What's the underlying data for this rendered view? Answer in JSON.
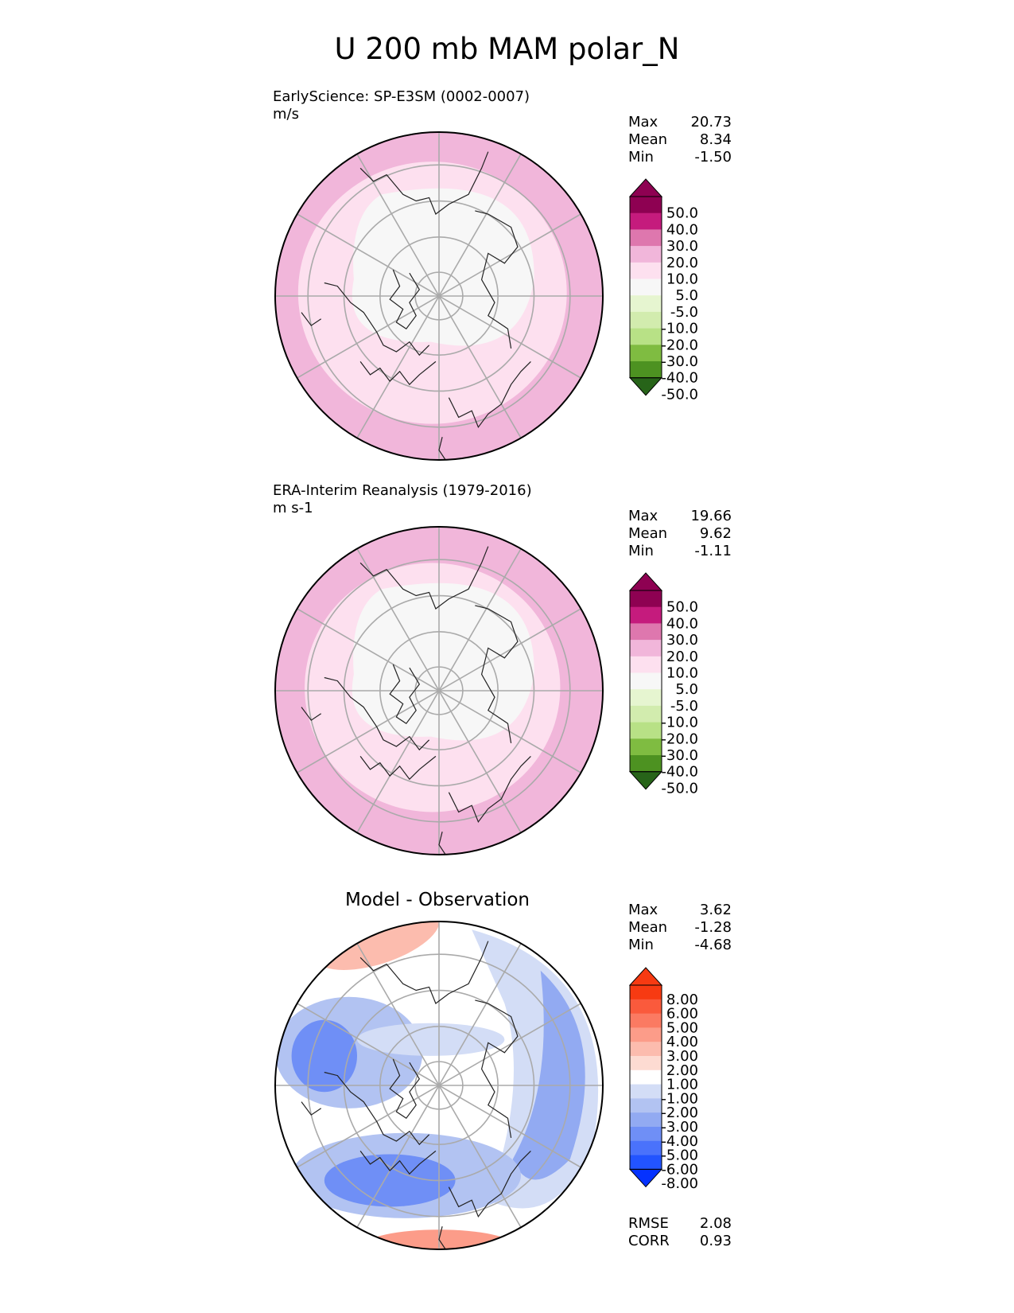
{
  "title": "U 200 mb MAM polar_N",
  "panels": [
    {
      "title_line1": "EarlyScience: SP-E3SM (0002-0007)",
      "title_line2": "m/s",
      "stats": [
        {
          "label": "Max",
          "value": "20.73"
        },
        {
          "label": "Mean",
          "value": "8.34"
        },
        {
          "label": "Min",
          "value": "-1.50"
        }
      ],
      "colorbar_labels": [
        "50.0",
        "40.0",
        "30.0",
        "20.0",
        "10.0",
        "5.0",
        "-5.0",
        "-10.0",
        "-20.0",
        "-30.0",
        "-40.0",
        "-50.0"
      ]
    },
    {
      "title_line1": "ERA-Interim Reanalysis (1979-2016)",
      "title_line2": "m s-1",
      "stats": [
        {
          "label": "Max",
          "value": "19.66"
        },
        {
          "label": "Mean",
          "value": "9.62"
        },
        {
          "label": "Min",
          "value": "-1.11"
        }
      ],
      "colorbar_labels": [
        "50.0",
        "40.0",
        "30.0",
        "20.0",
        "10.0",
        "5.0",
        "-5.0",
        "-10.0",
        "-20.0",
        "-30.0",
        "-40.0",
        "-50.0"
      ]
    },
    {
      "title": "Model - Observation",
      "stats": [
        {
          "label": "Max",
          "value": "3.62"
        },
        {
          "label": "Mean",
          "value": "-1.28"
        },
        {
          "label": "Min",
          "value": "-4.68"
        }
      ],
      "colorbar_labels": [
        "8.00",
        "6.00",
        "5.00",
        "4.00",
        "3.00",
        "2.00",
        "1.00",
        "-1.00",
        "-2.00",
        "-3.00",
        "-4.00",
        "-5.00",
        "-6.00",
        "-8.00"
      ],
      "metrics": [
        {
          "label": "RMSE",
          "value": "2.08"
        },
        {
          "label": "CORR",
          "value": "0.93"
        }
      ]
    }
  ],
  "chart_data": [
    {
      "type": "heatmap",
      "title": "EarlyScience: SP-E3SM (0002-0007)",
      "units": "m/s",
      "projection": "north polar stereographic",
      "levels": [
        -50,
        -40,
        -30,
        -20,
        -10,
        -5,
        5,
        10,
        20,
        30,
        40,
        50
      ],
      "colors": [
        "#276419",
        "#4d9221",
        "#7fbc41",
        "#b8e186",
        "#d2ecae",
        "#e6f5d0",
        "#f7f7f7",
        "#fde0ef",
        "#f1b6da",
        "#de77ae",
        "#c51b7d",
        "#8e0152",
        "#8e0152"
      ],
      "max": 20.73,
      "mean": 8.34,
      "min": -1.5
    },
    {
      "type": "heatmap",
      "title": "ERA-Interim Reanalysis (1979-2016)",
      "units": "m s-1",
      "projection": "north polar stereographic",
      "levels": [
        -50,
        -40,
        -30,
        -20,
        -10,
        -5,
        5,
        10,
        20,
        30,
        40,
        50
      ],
      "max": 19.66,
      "mean": 9.62,
      "min": -1.11
    },
    {
      "type": "heatmap",
      "title": "Model - Observation",
      "projection": "north polar stereographic",
      "levels": [
        -8,
        -6,
        -5,
        -4,
        -3,
        -2,
        -1,
        1,
        2,
        3,
        4,
        5,
        6,
        8
      ],
      "colors": [
        "#0532ff",
        "#2254ff",
        "#4a72fb",
        "#6f8ff6",
        "#92aaf2",
        "#b2c3f2",
        "#d3ddf6",
        "#ffffff",
        "#fddbd2",
        "#fcbcae",
        "#fc9c89",
        "#fb7a62",
        "#fa5a3c",
        "#f73a12",
        "#f73a12"
      ],
      "max": 3.62,
      "mean": -1.28,
      "min": -4.68,
      "rmse": 2.08,
      "corr": 0.93
    }
  ]
}
